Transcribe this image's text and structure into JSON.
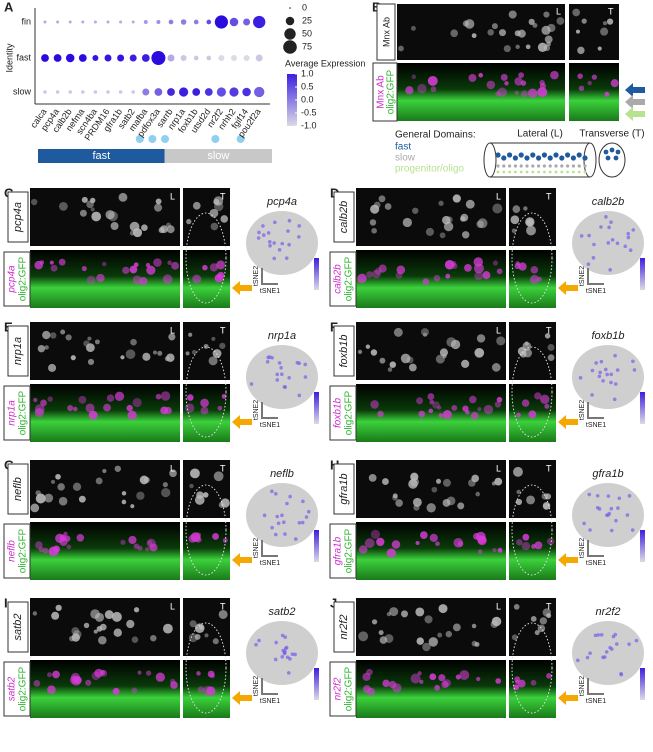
{
  "panel_a": {
    "label": "A",
    "y_label": "Identity",
    "identities": [
      "fin",
      "fast",
      "slow"
    ],
    "genes": [
      "calca",
      "pcp4a",
      "calb2b",
      "nefma",
      "scn4ba",
      "PRDM16",
      "gfra1b",
      "satb2",
      "mafba",
      "pdfox3a",
      "sarrb",
      "nrp1a",
      "foxb1b",
      "utsd2d",
      "nr2f2",
      "nrhh2",
      "fgif14",
      "pou2f2a"
    ],
    "percent_expressed": [
      [
        1,
        1,
        1,
        1,
        1,
        1,
        1,
        1,
        3,
        3,
        5,
        8,
        5,
        5,
        70,
        25,
        15,
        60
      ],
      [
        20,
        20,
        25,
        20,
        10,
        15,
        15,
        15,
        20,
        80,
        15,
        10,
        5,
        5,
        10,
        10,
        10,
        15
      ],
      [
        2,
        2,
        2,
        2,
        2,
        2,
        2,
        2,
        15,
        20,
        20,
        30,
        20,
        20,
        30,
        30,
        25,
        40
      ]
    ],
    "average_expression": [
      [
        -0.5,
        -0.5,
        -0.5,
        -0.5,
        -0.5,
        -0.5,
        -0.5,
        -0.5,
        -0.3,
        -0.2,
        0,
        0,
        0,
        0.5,
        1.2,
        0.5,
        0.3,
        1
      ],
      [
        1.2,
        1.2,
        1.2,
        1.2,
        1.1,
        1.1,
        1.1,
        1,
        1,
        1.2,
        -0.5,
        -0.8,
        -0.8,
        -0.8,
        -1,
        -1,
        -1,
        -0.8
      ],
      [
        -0.8,
        -0.8,
        -0.8,
        -0.8,
        -0.8,
        -0.8,
        -0.8,
        -0.8,
        0,
        0.3,
        0.9,
        1,
        1,
        0.8,
        0.5,
        0.7,
        0.8,
        0.3
      ]
    ],
    "size_legend": [
      0,
      25,
      50,
      75
    ],
    "color_legend": {
      "title": "Average Expression",
      "ticks": [
        {
          "value": 1,
          "label": "1.0"
        },
        0.5,
        {
          "value": 0,
          "label": "0.0"
        },
        -0.5,
        {
          "value": -1,
          "label": "-1.0"
        }
      ]
    },
    "domains": [
      "fast",
      "slow"
    ]
  },
  "panel_b": {
    "label": "B",
    "antibody": "Mnx Ab",
    "legend_title": "General Domains:",
    "domains": [
      "fast",
      "slow",
      "progenitor/oligo"
    ],
    "lateral": "Lateral (L)",
    "transverse": "Transverse (T)"
  },
  "labels": {
    "lateral": "L",
    "transverse": "T",
    "tsne_x": "tSNE1",
    "tsne_y": "tSNE2",
    "reporter": "olig2:GFP"
  },
  "panels": [
    {
      "letter": "C",
      "gene": "pcp4a"
    },
    {
      "letter": "D",
      "gene": "calb2b"
    },
    {
      "letter": "E",
      "gene": "nrp1a"
    },
    {
      "letter": "F",
      "gene": "foxb1b"
    },
    {
      "letter": "G",
      "gene": "neflb"
    },
    {
      "letter": "H",
      "gene": "gfra1b"
    },
    {
      "letter": "I",
      "gene": "satb2"
    },
    {
      "letter": "J",
      "gene": "nr2f2"
    }
  ]
}
